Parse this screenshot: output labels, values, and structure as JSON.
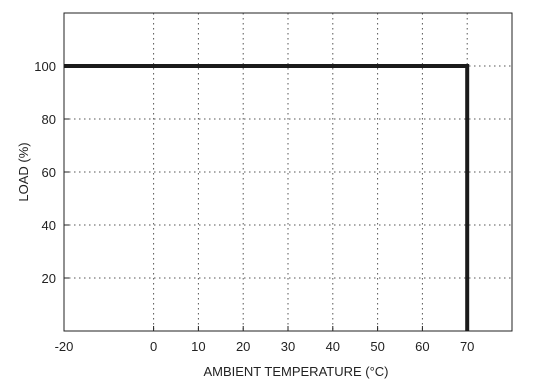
{
  "chart_data": {
    "type": "line",
    "title": "",
    "xlabel": "AMBIENT TEMPERATURE (°C)",
    "ylabel": "LOAD (%)",
    "xlim": [
      -20,
      80
    ],
    "ylim": [
      0,
      120
    ],
    "xticks": [
      -20,
      0,
      10,
      20,
      30,
      40,
      50,
      60,
      70
    ],
    "yticks": [
      20,
      40,
      60,
      80,
      100
    ],
    "grid": true,
    "grid_style": "dotted",
    "series": [
      {
        "x": [
          -20,
          70,
          70
        ],
        "y": [
          100,
          100,
          0
        ],
        "color": "#1a1a1a"
      }
    ]
  }
}
